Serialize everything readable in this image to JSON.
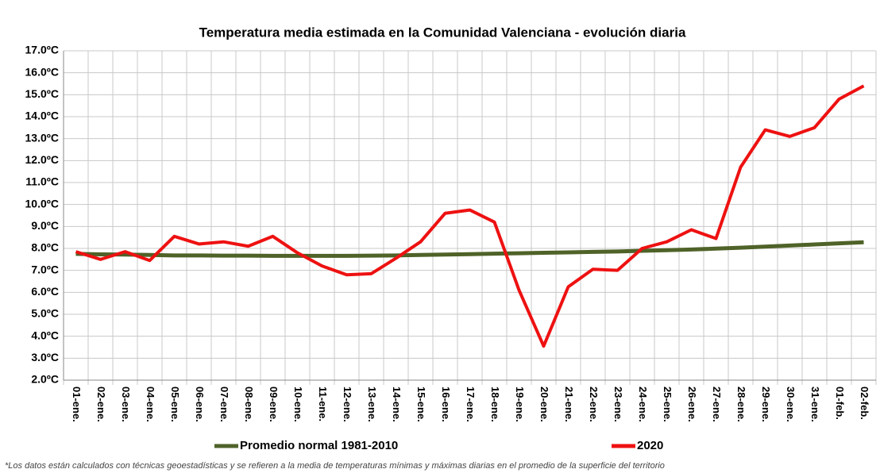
{
  "chart_data": {
    "type": "line",
    "title": "Temperatura media estimada en la Comunidad Valenciana - evolución diaria",
    "footnote": "*Los datos están calculados con técnicas geoestadísticas y se refieren a la media de temperaturas mínimas y máximas diarias en el promedio de la superficie del territorio",
    "categories": [
      "01-ene.",
      "02-ene.",
      "03-ene.",
      "04-ene.",
      "05-ene.",
      "06-ene.",
      "07-ene.",
      "08-ene.",
      "09-ene.",
      "10-ene.",
      "11-ene.",
      "12-ene.",
      "13-ene.",
      "14-ene.",
      "15-ene.",
      "16-ene.",
      "17-ene.",
      "18-ene.",
      "19-ene.",
      "20-ene.",
      "21-ene.",
      "22-ene.",
      "23-ene.",
      "24-ene.",
      "25-ene.",
      "26-ene.",
      "27-ene.",
      "28-ene.",
      "29-ene.",
      "30-ene.",
      "31-ene.",
      "01-feb.",
      "02-feb."
    ],
    "series": [
      {
        "name": "Promedio normal 1981-2010",
        "color": "#4f6228",
        "values": [
          7.75,
          7.73,
          7.72,
          7.7,
          7.68,
          7.68,
          7.67,
          7.67,
          7.66,
          7.66,
          7.66,
          7.66,
          7.67,
          7.68,
          7.7,
          7.72,
          7.74,
          7.76,
          7.78,
          7.8,
          7.82,
          7.84,
          7.86,
          7.89,
          7.92,
          7.95,
          7.99,
          8.03,
          8.08,
          8.13,
          8.18,
          8.23,
          8.28
        ]
      },
      {
        "name": "2020",
        "color": "#ee1111",
        "values": [
          7.85,
          7.5,
          7.85,
          7.45,
          8.55,
          8.2,
          8.3,
          8.1,
          8.55,
          7.8,
          7.2,
          6.8,
          6.85,
          7.55,
          8.3,
          9.6,
          9.75,
          9.2,
          6.1,
          3.55,
          6.25,
          7.05,
          7.0,
          8.0,
          8.3,
          8.85,
          8.45,
          11.7,
          13.4,
          13.1,
          13.5,
          14.8,
          15.4
        ]
      }
    ],
    "ylim": [
      2,
      17
    ],
    "yticks": [
      {
        "value": 2,
        "label": "2.0ºC"
      },
      {
        "value": 3,
        "label": "3.0ºC"
      },
      {
        "value": 4,
        "label": "4.0ºC"
      },
      {
        "value": 5,
        "label": "5.0ºC"
      },
      {
        "value": 6,
        "label": "6.0ºC"
      },
      {
        "value": 7,
        "label": "7.0ºC"
      },
      {
        "value": 8,
        "label": "8.0ºC"
      },
      {
        "value": 9,
        "label": "9.0ºC"
      },
      {
        "value": 10,
        "label": "10.0ºC"
      },
      {
        "value": 11,
        "label": "11.0ºC"
      },
      {
        "value": 12,
        "label": "12.0ºC"
      },
      {
        "value": 13,
        "label": "13.0ºC"
      },
      {
        "value": 14,
        "label": "14.0ºC"
      },
      {
        "value": 15,
        "label": "15.0ºC"
      },
      {
        "value": 16,
        "label": "16.0ºC"
      },
      {
        "value": 17,
        "label": "17.0ºC"
      }
    ],
    "grid": true,
    "legend": "bottom"
  }
}
